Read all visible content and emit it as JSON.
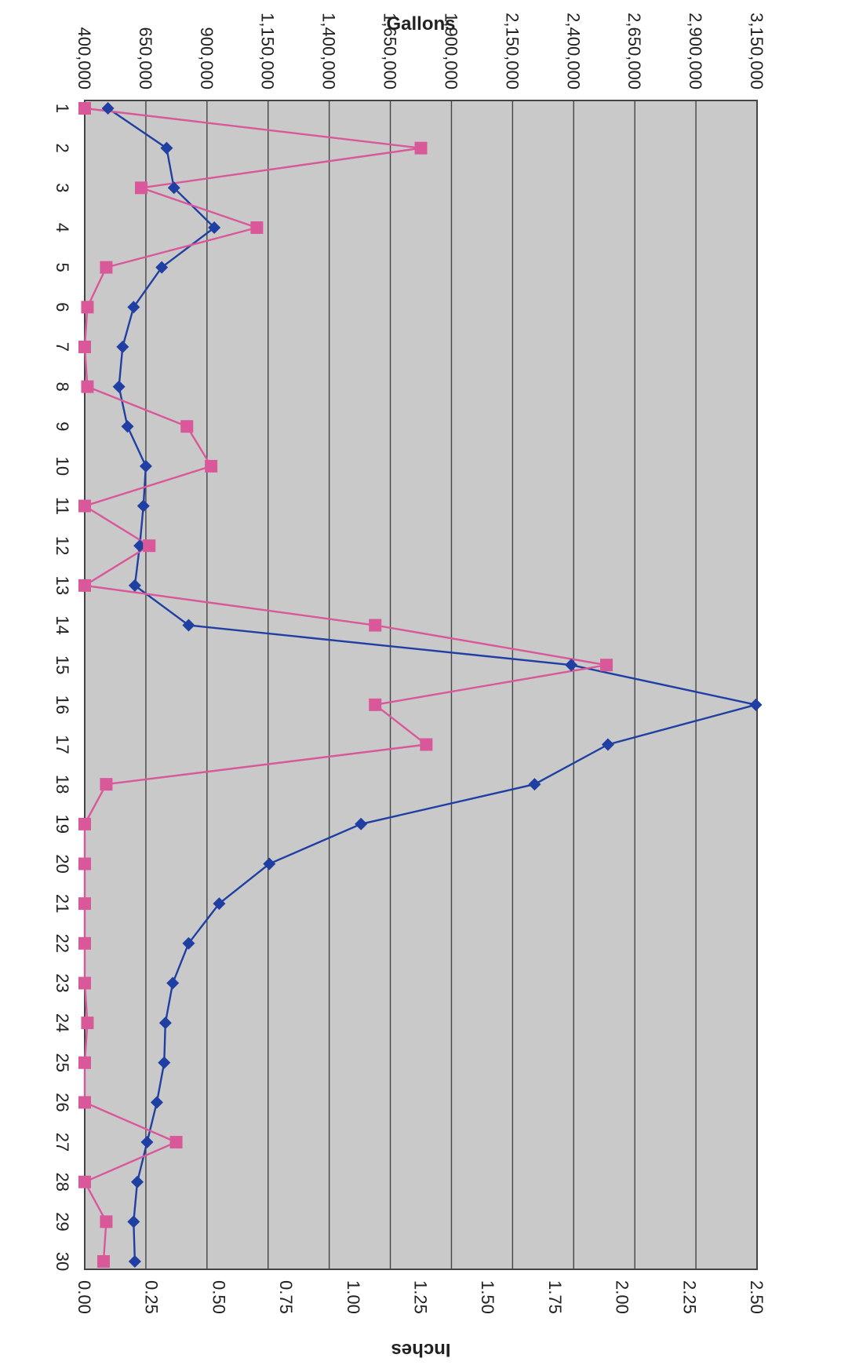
{
  "chart_data": {
    "type": "line",
    "orientation": "rotated-90-clockwise",
    "x": [
      1,
      2,
      3,
      4,
      5,
      6,
      7,
      8,
      9,
      10,
      11,
      12,
      13,
      14,
      15,
      16,
      17,
      18,
      19,
      20,
      21,
      22,
      23,
      24,
      25,
      26,
      27,
      28,
      29,
      30
    ],
    "x_tick_labels": [
      "1",
      "2",
      "3",
      "4",
      "5",
      "6",
      "7",
      "8",
      "9",
      "10",
      "11",
      "12",
      "13",
      "14",
      "15",
      "16",
      "17",
      "18",
      "19",
      "20",
      "21",
      "22",
      "23",
      "24",
      "25",
      "26",
      "27",
      "28",
      "29",
      "30"
    ],
    "left_axis": {
      "label": "Gallons",
      "ylim": [
        400000,
        3150000
      ],
      "ticks": [
        400000,
        650000,
        900000,
        1150000,
        1400000,
        1650000,
        1900000,
        2150000,
        2400000,
        2650000,
        2900000,
        3150000
      ],
      "tick_labels": [
        "400,000",
        "650,000",
        "900,000",
        "1,150,000",
        "1,400,000",
        "1,650,000",
        "1,900,000",
        "2,150,000",
        "2,400,000",
        "2,650,000",
        "2,900,000",
        "3,150,000"
      ]
    },
    "right_axis": {
      "label": "Inches",
      "ylim": [
        0,
        2.5
      ],
      "ticks": [
        0,
        0.25,
        0.5,
        0.75,
        1.0,
        1.25,
        1.5,
        1.75,
        2.0,
        2.25,
        2.5
      ],
      "tick_labels": [
        "0.00",
        "0.25",
        "0.50",
        "0.75",
        "1.00",
        "1.25",
        "1.50",
        "1.75",
        "2.00",
        "2.25",
        "2.50"
      ]
    },
    "grid": true,
    "series": [
      {
        "axis": "left",
        "color": "#1f3fa3",
        "marker": "diamond",
        "values": [
          495000,
          735000,
          765000,
          930000,
          715000,
          600000,
          555000,
          540000,
          575000,
          650000,
          640000,
          625000,
          605000,
          825000,
          2390000,
          3145000,
          2540000,
          2240000,
          1530000,
          1155000,
          950000,
          825000,
          760000,
          730000,
          725000,
          695000,
          655000,
          615000,
          600000,
          605000
        ]
      },
      {
        "axis": "right",
        "color": "#d9589a",
        "marker": "square",
        "values": [
          0.0,
          1.25,
          0.21,
          0.64,
          0.08,
          0.01,
          0.0,
          0.01,
          0.38,
          0.47,
          0.0,
          0.24,
          0.0,
          1.08,
          1.94,
          1.08,
          1.27,
          0.08,
          0.0,
          0.0,
          0.0,
          0.0,
          0.0,
          0.01,
          0.0,
          0.0,
          0.34,
          0.0,
          0.08,
          0.07
        ]
      }
    ]
  }
}
